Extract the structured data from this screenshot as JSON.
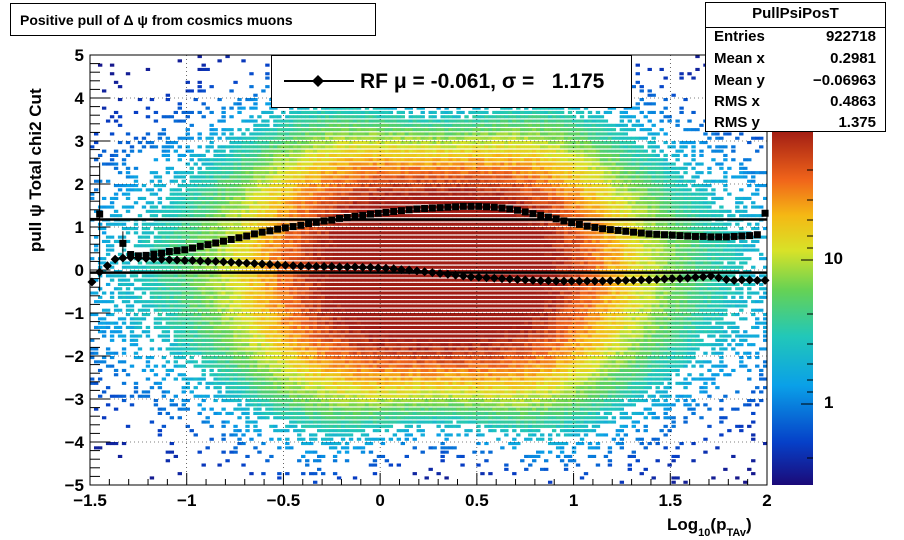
{
  "title": "Positive pull of Δ ψ from cosmics muons",
  "stats": {
    "name": "PullPsiPosT",
    "rows": [
      {
        "key": "Entries",
        "value": "922718"
      },
      {
        "key": "Mean x",
        "value": "0.2981"
      },
      {
        "key": "Mean y",
        "value": "−0.06963"
      },
      {
        "key": "RMS x",
        "value": "0.4863"
      },
      {
        "key": "RMS y",
        "value": "1.375"
      }
    ]
  },
  "legend": {
    "label": "RF μ = -0.061, σ =   1.175"
  },
  "colorbar": {
    "labels": [
      "10",
      "1"
    ]
  },
  "chart_data": {
    "type": "heatmap",
    "xlabel_main": "Log",
    "xlabel_sub": "10",
    "xlabel_paren_open": "(p",
    "xlabel_sub2": "TAv",
    "xlabel_paren_close": ")",
    "ylabel": "pull ψ   Total chi2 Cut",
    "xlim": [
      -1.5,
      2
    ],
    "ylim": [
      -5,
      5
    ],
    "x_ticks": [
      {
        "v": -1.5,
        "label": "−1.5"
      },
      {
        "v": -1,
        "label": "−1"
      },
      {
        "v": -0.5,
        "label": "−0.5"
      },
      {
        "v": 0,
        "label": "0"
      },
      {
        "v": 0.5,
        "label": "0.5"
      },
      {
        "v": 1,
        "label": "1"
      },
      {
        "v": 1.5,
        "label": "1.5"
      },
      {
        "v": 2,
        "label": "2"
      }
    ],
    "y_ticks": [
      {
        "v": 5,
        "label": "5"
      },
      {
        "v": 4,
        "label": "4"
      },
      {
        "v": 3,
        "label": "3"
      },
      {
        "v": 2,
        "label": "2"
      },
      {
        "v": 1,
        "label": "1"
      },
      {
        "v": 0,
        "label": "0"
      },
      {
        "v": -1,
        "label": "−1"
      },
      {
        "v": -2,
        "label": "−2"
      },
      {
        "v": -3,
        "label": "−3"
      },
      {
        "v": -4,
        "label": "−4"
      },
      {
        "v": -5,
        "label": "−5"
      }
    ],
    "grid": true,
    "z_scale": "log",
    "hlines": [
      1.175,
      -0.061
    ],
    "series": [
      {
        "marker": "square",
        "x": [
          -1.45,
          -1.33,
          -1.29,
          -1.25,
          -1.21,
          -1.17,
          -1.13,
          -1.09,
          -1.05,
          -1.01,
          -0.97,
          -0.93,
          -0.89,
          -0.85,
          -0.81,
          -0.77,
          -0.73,
          -0.69,
          -0.65,
          -0.61,
          -0.57,
          -0.53,
          -0.49,
          -0.45,
          -0.41,
          -0.37,
          -0.33,
          -0.29,
          -0.25,
          -0.21,
          -0.17,
          -0.13,
          -0.09,
          -0.05,
          -0.01,
          0.03,
          0.07,
          0.11,
          0.15,
          0.19,
          0.23,
          0.27,
          0.31,
          0.35,
          0.39,
          0.43,
          0.47,
          0.51,
          0.55,
          0.59,
          0.63,
          0.67,
          0.71,
          0.75,
          0.79,
          0.83,
          0.87,
          0.91,
          0.95,
          0.99,
          1.03,
          1.07,
          1.11,
          1.15,
          1.19,
          1.23,
          1.27,
          1.31,
          1.35,
          1.39,
          1.43,
          1.47,
          1.51,
          1.55,
          1.59,
          1.63,
          1.67,
          1.71,
          1.75,
          1.79,
          1.83,
          1.87,
          1.91,
          1.95,
          1.99
        ],
        "y": [
          1.3,
          0.62,
          0.36,
          0.33,
          0.34,
          0.37,
          0.39,
          0.43,
          0.45,
          0.47,
          0.51,
          0.55,
          0.59,
          0.63,
          0.67,
          0.71,
          0.75,
          0.79,
          0.84,
          0.88,
          0.91,
          0.95,
          0.98,
          1.01,
          1.04,
          1.08,
          1.11,
          1.14,
          1.16,
          1.2,
          1.22,
          1.25,
          1.27,
          1.3,
          1.32,
          1.34,
          1.36,
          1.38,
          1.4,
          1.42,
          1.43,
          1.44,
          1.45,
          1.46,
          1.47,
          1.48,
          1.48,
          1.48,
          1.47,
          1.46,
          1.44,
          1.42,
          1.39,
          1.35,
          1.31,
          1.27,
          1.23,
          1.19,
          1.14,
          1.1,
          1.06,
          1.02,
          0.99,
          0.96,
          0.94,
          0.92,
          0.9,
          0.88,
          0.86,
          0.84,
          0.83,
          0.82,
          0.81,
          0.8,
          0.79,
          0.78,
          0.78,
          0.77,
          0.77,
          0.77,
          0.78,
          0.79,
          0.8,
          0.82,
          1.32
        ]
      },
      {
        "marker": "diamond",
        "x": [
          -1.49,
          -1.45,
          -1.41,
          -1.37,
          -1.33,
          -1.29,
          -1.25,
          -1.21,
          -1.17,
          -1.13,
          -1.09,
          -1.05,
          -1.01,
          -0.97,
          -0.93,
          -0.89,
          -0.85,
          -0.81,
          -0.77,
          -0.73,
          -0.69,
          -0.65,
          -0.61,
          -0.57,
          -0.53,
          -0.49,
          -0.45,
          -0.41,
          -0.37,
          -0.33,
          -0.29,
          -0.25,
          -0.21,
          -0.17,
          -0.13,
          -0.09,
          -0.05,
          -0.01,
          0.03,
          0.07,
          0.11,
          0.15,
          0.19,
          0.23,
          0.27,
          0.31,
          0.35,
          0.39,
          0.43,
          0.47,
          0.51,
          0.55,
          0.59,
          0.63,
          0.67,
          0.71,
          0.75,
          0.79,
          0.83,
          0.87,
          0.91,
          0.95,
          0.99,
          1.03,
          1.07,
          1.11,
          1.15,
          1.19,
          1.23,
          1.27,
          1.31,
          1.35,
          1.39,
          1.43,
          1.47,
          1.51,
          1.55,
          1.59,
          1.63,
          1.67,
          1.71,
          1.75,
          1.79,
          1.83,
          1.87,
          1.91,
          1.95,
          1.99
        ],
        "y": [
          -0.28,
          -0.05,
          0.1,
          0.25,
          0.28,
          0.29,
          0.28,
          0.27,
          0.26,
          0.25,
          0.24,
          0.23,
          0.22,
          0.22,
          0.21,
          0.2,
          0.2,
          0.19,
          0.18,
          0.17,
          0.16,
          0.15,
          0.14,
          0.13,
          0.12,
          0.11,
          0.1,
          0.09,
          0.09,
          0.08,
          0.08,
          0.08,
          0.07,
          0.07,
          0.07,
          0.06,
          0.06,
          0.05,
          0.04,
          0.03,
          0.01,
          0.0,
          -0.02,
          -0.04,
          -0.06,
          -0.08,
          -0.1,
          -0.12,
          -0.14,
          -0.16,
          -0.17,
          -0.18,
          -0.19,
          -0.2,
          -0.21,
          -0.22,
          -0.23,
          -0.24,
          -0.25,
          -0.25,
          -0.26,
          -0.26,
          -0.26,
          -0.26,
          -0.26,
          -0.26,
          -0.26,
          -0.25,
          -0.25,
          -0.24,
          -0.24,
          -0.23,
          -0.23,
          -0.22,
          -0.21,
          -0.2,
          -0.2,
          -0.19,
          -0.17,
          -0.16,
          -0.14,
          -0.18,
          -0.22,
          -0.24,
          -0.23,
          -0.23,
          -0.24,
          -0.24
        ]
      }
    ]
  }
}
